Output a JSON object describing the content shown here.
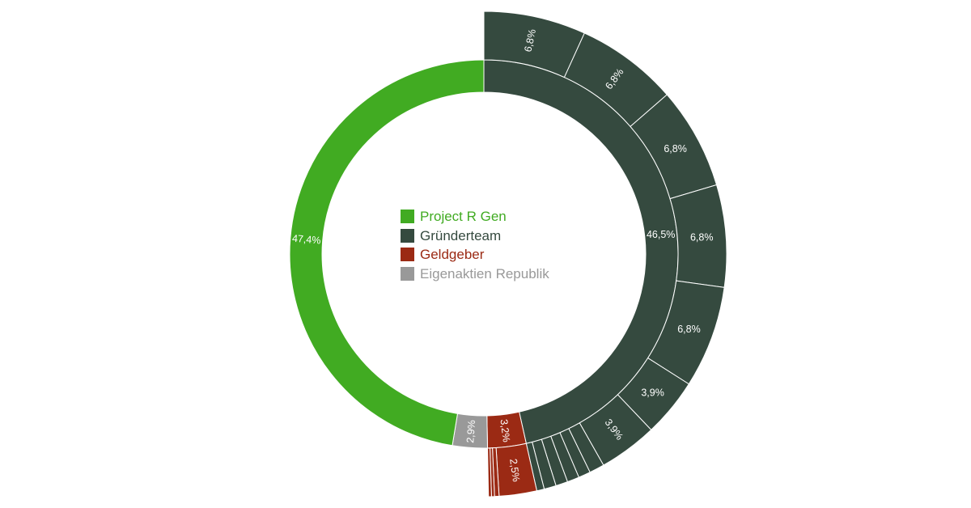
{
  "chart_data": {
    "type": "sunburst",
    "inner_ring": [
      {
        "name": "Project R Gen",
        "value": 47.4,
        "label": "47,4%",
        "color": "#41ab22"
      },
      {
        "name": "Gründerteam",
        "value": 46.5,
        "label": "46,5%",
        "color": "#354a3f"
      },
      {
        "name": "Geldgeber",
        "value": 3.2,
        "label": "3,2%",
        "color": "#9b2a14"
      },
      {
        "name": "Eigenaktien Republik",
        "value": 2.9,
        "label": "2,9%",
        "color": "#999999"
      }
    ],
    "outer_ring": [
      {
        "parent": "Gründerteam",
        "value": 6.8,
        "label": "6,8%"
      },
      {
        "parent": "Gründerteam",
        "value": 6.8,
        "label": "6,8%"
      },
      {
        "parent": "Gründerteam",
        "value": 6.8,
        "label": "6,8%"
      },
      {
        "parent": "Gründerteam",
        "value": 6.8,
        "label": "6,8%"
      },
      {
        "parent": "Gründerteam",
        "value": 6.8,
        "label": "6,8%"
      },
      {
        "parent": "Gründerteam",
        "value": 3.9,
        "label": "3,9%"
      },
      {
        "parent": "Gründerteam",
        "value": 3.9,
        "label": "3,9%"
      },
      {
        "parent": "Gründerteam",
        "value": 1.0,
        "label": ""
      },
      {
        "parent": "Gründerteam",
        "value": 0.8,
        "label": ""
      },
      {
        "parent": "Gründerteam",
        "value": 0.8,
        "label": ""
      },
      {
        "parent": "Gründerteam",
        "value": 0.8,
        "label": ""
      },
      {
        "parent": "Gründerteam",
        "value": 0.8,
        "label": ""
      },
      {
        "parent": "Gründerteam",
        "value": 0.5,
        "label": ""
      },
      {
        "parent": "Geldgeber",
        "value": 2.5,
        "label": "2,5%"
      },
      {
        "parent": "Geldgeber",
        "value": 0.3,
        "label": ""
      },
      {
        "parent": "Geldgeber",
        "value": 0.2,
        "label": ""
      },
      {
        "parent": "Geldgeber",
        "value": 0.2,
        "label": ""
      }
    ],
    "legend": [
      {
        "label": "Project R Gen",
        "color": "#41ab22"
      },
      {
        "label": "Gründerteam",
        "color": "#354a3f"
      },
      {
        "label": "Geldgeber",
        "color": "#9b2a14"
      },
      {
        "label": "Eigenaktien Republik",
        "color": "#999999"
      }
    ]
  }
}
